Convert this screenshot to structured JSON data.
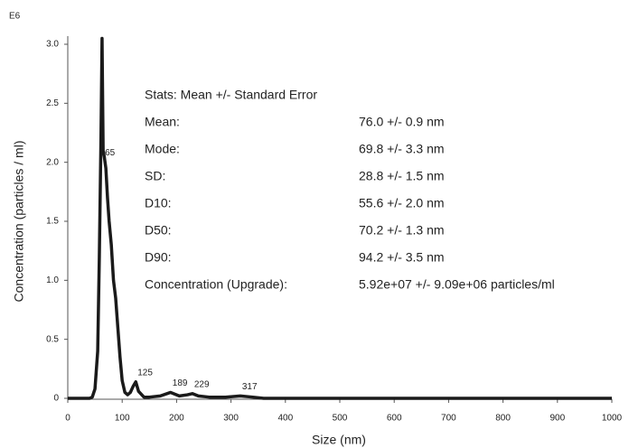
{
  "chart_data": {
    "type": "line",
    "y_multiplier": "E6",
    "x_label": "Size (nm)",
    "y_label": "Concentration (particles / ml)",
    "xlim": [
      0,
      1000
    ],
    "xticks": [
      0,
      100,
      200,
      300,
      400,
      500,
      600,
      700,
      800,
      900,
      1000
    ],
    "ylim": [
      0,
      3.0
    ],
    "yticks": [
      0,
      0.5,
      {
        "value": 1,
        "label": "1.0"
      },
      1.5,
      {
        "value": 2,
        "label": "2.0"
      },
      2.5,
      {
        "value": 3,
        "label": "3.0"
      }
    ],
    "series": [
      {
        "color": "#1a1a1a",
        "x": [
          0,
          40,
          45,
          50,
          55,
          58,
          61,
          63,
          65,
          67,
          70,
          73,
          76,
          80,
          84,
          88,
          92,
          96,
          100,
          105,
          110,
          115,
          120,
          125,
          130,
          140,
          150,
          170,
          189,
          205,
          220,
          229,
          240,
          260,
          290,
          317,
          340,
          360,
          400,
          500,
          600,
          700,
          800,
          900,
          1000
        ],
        "values": [
          0,
          0,
          0.01,
          0.08,
          0.4,
          1.2,
          2.2,
          3.05,
          2.1,
          2.05,
          1.95,
          1.7,
          1.5,
          1.3,
          1.0,
          0.85,
          0.6,
          0.35,
          0.15,
          0.05,
          0.03,
          0.05,
          0.1,
          0.14,
          0.06,
          0.01,
          0.01,
          0.02,
          0.05,
          0.02,
          0.03,
          0.04,
          0.02,
          0.01,
          0.01,
          0.02,
          0.01,
          0,
          0,
          0,
          0,
          0,
          0,
          0,
          0
        ]
      }
    ],
    "peak_labels": [
      65,
      125,
      189,
      229,
      317
    ],
    "stats_title": "Stats: Mean +/- Standard Error",
    "stats": [
      [
        "Mean:",
        "76.0 +/- 0.9 nm"
      ],
      [
        "Mode:",
        "69.8 +/- 3.3 nm"
      ],
      [
        "SD:",
        "28.8 +/- 1.5 nm"
      ],
      [
        "D10:",
        "55.6 +/- 2.0 nm"
      ],
      [
        "D50:",
        "70.2 +/- 1.3 nm"
      ],
      [
        "D90:",
        "94.2 +/- 3.5 nm"
      ],
      [
        "Concentration (Upgrade):",
        "5.92e+07 +/- 9.09e+06 particles/ml"
      ]
    ]
  }
}
